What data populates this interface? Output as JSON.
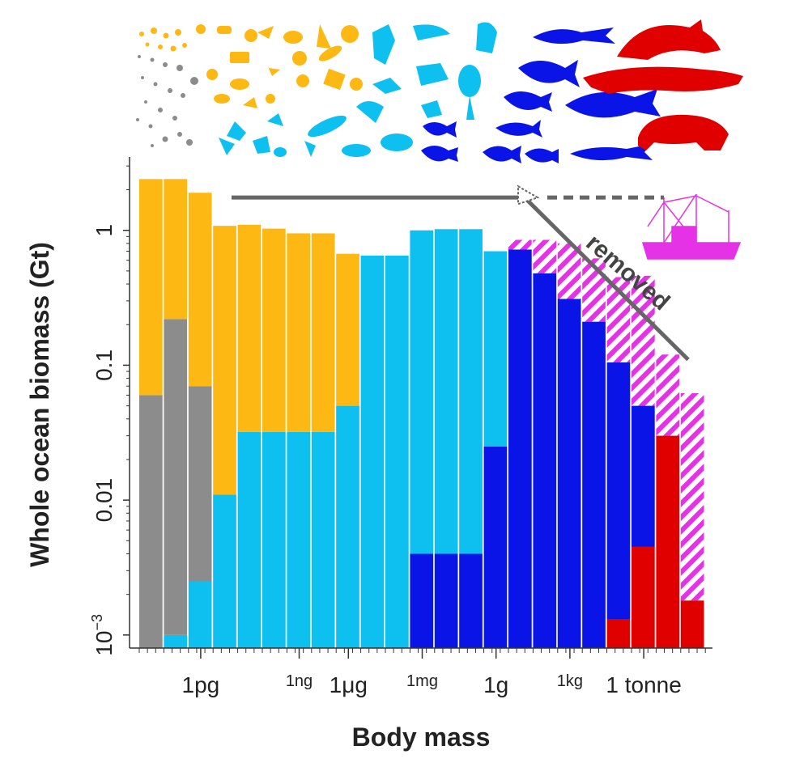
{
  "chart_data": {
    "type": "bar",
    "scale": "log",
    "xlabel": "Body mass",
    "ylabel": "Whole ocean biomass (Gt)",
    "ylim": [
      0.0008,
      3.5
    ],
    "y_ticks": [
      {
        "value": 1,
        "label": "1"
      },
      {
        "value": 0.1,
        "label": "0.1"
      },
      {
        "value": 0.01,
        "label": "0.01"
      },
      {
        "value": 0.001,
        "label": "10",
        "sup": "−3"
      }
    ],
    "x_ticks": [
      {
        "bin": 2,
        "label": "1pg",
        "size": "large"
      },
      {
        "bin": 6,
        "label": "1ng",
        "size": "small"
      },
      {
        "bin": 8,
        "label": "1μg",
        "size": "large"
      },
      {
        "bin": 11,
        "label": "1mg",
        "size": "small"
      },
      {
        "bin": 14,
        "label": "1g",
        "size": "large"
      },
      {
        "bin": 17,
        "label": "1kg",
        "size": "small"
      },
      {
        "bin": 20,
        "label": "1 tonne",
        "size": "large"
      }
    ],
    "groups": [
      {
        "name": "Bacteria",
        "color": "#8c8c8c"
      },
      {
        "name": "Phytoplankton",
        "color": "#fdb813"
      },
      {
        "name": "Zooplankton",
        "color": "#0dc0f0"
      },
      {
        "name": "Fish",
        "color": "#0a14e6"
      },
      {
        "name": "Marine mammals",
        "color": "#e00000"
      },
      {
        "name": "Removed by fishing",
        "color": "#e632e6"
      }
    ],
    "bars": [
      {
        "total": 2.4,
        "removed": 0,
        "layers": [
          {
            "color": "#8c8c8c",
            "top": 0.06
          },
          {
            "color": "#fdb813",
            "top": 2.4
          }
        ]
      },
      {
        "total": 2.4,
        "removed": 0,
        "layers": [
          {
            "color": "#0dc0f0",
            "top": 0.001
          },
          {
            "color": "#8c8c8c",
            "top": 0.22
          },
          {
            "color": "#fdb813",
            "top": 2.4
          }
        ]
      },
      {
        "total": 1.9,
        "removed": 0,
        "layers": [
          {
            "color": "#0dc0f0",
            "top": 0.0025
          },
          {
            "color": "#8c8c8c",
            "top": 0.07
          },
          {
            "color": "#fdb813",
            "top": 1.9
          }
        ]
      },
      {
        "total": 1.08,
        "removed": 0,
        "layers": [
          {
            "color": "#0dc0f0",
            "top": 0.011
          },
          {
            "color": "#fdb813",
            "top": 1.08
          }
        ]
      },
      {
        "total": 1.1,
        "removed": 0,
        "layers": [
          {
            "color": "#0dc0f0",
            "top": 0.032
          },
          {
            "color": "#fdb813",
            "top": 1.1
          }
        ]
      },
      {
        "total": 1.03,
        "removed": 0,
        "layers": [
          {
            "color": "#0dc0f0",
            "top": 0.032
          },
          {
            "color": "#fdb813",
            "top": 1.03
          }
        ]
      },
      {
        "total": 0.95,
        "removed": 0,
        "layers": [
          {
            "color": "#0dc0f0",
            "top": 0.032
          },
          {
            "color": "#fdb813",
            "top": 0.95
          }
        ]
      },
      {
        "total": 0.95,
        "removed": 0,
        "layers": [
          {
            "color": "#0dc0f0",
            "top": 0.032
          },
          {
            "color": "#fdb813",
            "top": 0.95
          }
        ]
      },
      {
        "total": 0.67,
        "removed": 0,
        "layers": [
          {
            "color": "#0dc0f0",
            "top": 0.05
          },
          {
            "color": "#fdb813",
            "top": 0.67
          }
        ]
      },
      {
        "total": 0.65,
        "removed": 0,
        "layers": [
          {
            "color": "#0dc0f0",
            "top": 0.65
          }
        ]
      },
      {
        "total": 0.65,
        "removed": 0,
        "layers": [
          {
            "color": "#0dc0f0",
            "top": 0.65
          }
        ]
      },
      {
        "total": 1.0,
        "removed": 0,
        "layers": [
          {
            "color": "#0a14e6",
            "top": 0.004
          },
          {
            "color": "#0dc0f0",
            "top": 1.0
          }
        ]
      },
      {
        "total": 1.02,
        "removed": 0,
        "layers": [
          {
            "color": "#0a14e6",
            "top": 0.004
          },
          {
            "color": "#0dc0f0",
            "top": 1.02
          }
        ]
      },
      {
        "total": 1.02,
        "removed": 0,
        "layers": [
          {
            "color": "#0a14e6",
            "top": 0.004
          },
          {
            "color": "#0dc0f0",
            "top": 1.02
          }
        ]
      },
      {
        "total": 0.7,
        "removed": 0,
        "layers": [
          {
            "color": "#0a14e6",
            "top": 0.025
          },
          {
            "color": "#0dc0f0",
            "top": 0.7
          }
        ]
      },
      {
        "total": 0.72,
        "removed": 0.85,
        "layers": [
          {
            "color": "#0a14e6",
            "top": 0.72
          }
        ]
      },
      {
        "total": 0.48,
        "removed": 0.85,
        "layers": [
          {
            "color": "#0a14e6",
            "top": 0.48
          }
        ]
      },
      {
        "total": 0.31,
        "removed": 0.8,
        "layers": [
          {
            "color": "#0a14e6",
            "top": 0.31
          }
        ]
      },
      {
        "total": 0.21,
        "removed": 0.62,
        "layers": [
          {
            "color": "#0a14e6",
            "top": 0.21
          }
        ]
      },
      {
        "total": 0.105,
        "removed": 0.45,
        "layers": [
          {
            "color": "#e00000",
            "top": 0.0013
          },
          {
            "color": "#0a14e6",
            "top": 0.105
          }
        ]
      },
      {
        "total": 0.05,
        "removed": 0.46,
        "layers": [
          {
            "color": "#e00000",
            "top": 0.0045
          },
          {
            "color": "#0a14e6",
            "top": 0.05
          }
        ]
      },
      {
        "total": 0.03,
        "removed": 0.12,
        "layers": [
          {
            "color": "#e00000",
            "top": 0.03
          }
        ]
      },
      {
        "total": 0.0018,
        "removed": 0.062,
        "layers": [
          {
            "color": "#e00000",
            "top": 0.0018
          }
        ]
      }
    ],
    "annotation": {
      "text": "removed",
      "line_level": 1.75,
      "line_end": 0.11
    }
  },
  "icons": [
    {
      "group": "bacteria",
      "name": "bacteria-icon-cluster"
    },
    {
      "group": "phytoplankton",
      "name": "phytoplankton-icon-cluster"
    },
    {
      "group": "zooplankton",
      "name": "zooplankton-icon-cluster"
    },
    {
      "group": "fish",
      "name": "fish-icon-cluster"
    },
    {
      "group": "mammals",
      "name": "marine-mammal-icon-cluster"
    },
    {
      "group": "vessel",
      "name": "fishing-vessel-icon"
    }
  ]
}
